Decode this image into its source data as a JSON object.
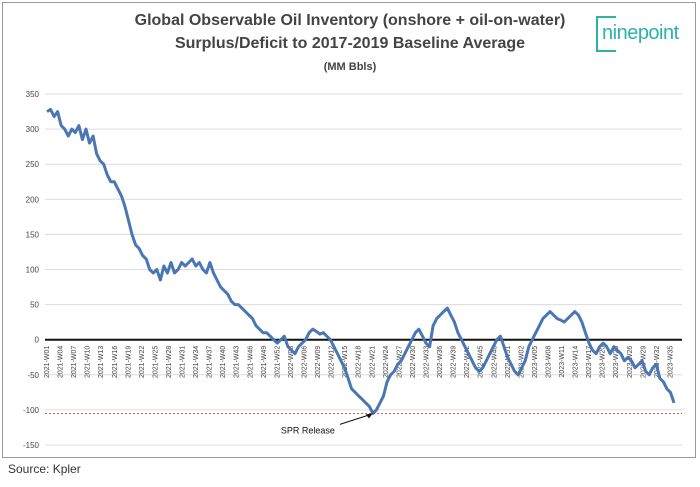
{
  "header": {
    "title_line1": "Global Observable Oil Inventory (onshore + oil-on-water)",
    "title_line2": "Surplus/Deficit to 2017-2019 Baseline Average",
    "units": "(MM Bbls)"
  },
  "logo": {
    "text": "ninepoint"
  },
  "footer": {
    "source": "Source: Kpler"
  },
  "chart_data": {
    "type": "line",
    "title": "Global Observable Oil Inventory (onshore + oil-on-water) Surplus/Deficit to 2017-2019 Baseline Average",
    "ylabel": "(MM Bbls)",
    "ylim": [
      -150,
      350
    ],
    "yticks": [
      350,
      300,
      250,
      200,
      150,
      100,
      50,
      0,
      -50,
      -100,
      -150
    ],
    "grid": true,
    "line_color": "#4a77b4",
    "annotation": {
      "text": "SPR Release",
      "y": -105
    },
    "x_tick_labels": [
      "2021-W01",
      "2021-W04",
      "2021-W07",
      "2021-W10",
      "2021-W13",
      "2021-W16",
      "2021-W19",
      "2021-W22",
      "2021-W25",
      "2021-W28",
      "2021-W31",
      "2021-W34",
      "2021-W37",
      "2021-W40",
      "2021-W43",
      "2021-W46",
      "2021-W49",
      "2021-W52",
      "2022-W03",
      "2022-W06",
      "2022-W09",
      "2022-W12",
      "2022-W15",
      "2022-W18",
      "2022-W21",
      "2022-W24",
      "2022-W27",
      "2022-W30",
      "2022-W33",
      "2022-W36",
      "2022-W39",
      "2022-W42",
      "2022-W45",
      "2022-W48",
      "2022-W51",
      "2023-W02",
      "2023-W05",
      "2023-W08",
      "2023-W11",
      "2023-W14",
      "2023-W17",
      "2023-W20",
      "2023-W23",
      "2023-W26",
      "2023-W29",
      "2023-W32",
      "2023-W35"
    ],
    "series": [
      {
        "values": [
          325,
          328,
          318,
          325,
          305,
          300,
          290,
          300,
          295,
          305,
          285,
          300,
          280,
          290,
          265,
          255,
          250,
          235,
          225,
          225,
          215,
          205,
          190,
          170,
          150,
          135,
          130,
          120,
          115,
          100,
          95,
          100,
          85,
          105,
          95,
          110,
          95,
          100,
          110,
          105,
          110,
          115,
          105,
          110,
          100,
          95,
          110,
          95,
          85,
          75,
          70,
          65,
          55,
          50,
          50,
          45,
          40,
          35,
          30,
          20,
          15,
          10,
          10,
          5,
          0,
          -5,
          0,
          5,
          -10,
          -15,
          -20,
          -10,
          -5,
          0,
          10,
          15,
          12,
          8,
          10,
          5,
          0,
          -10,
          -20,
          -30,
          -40,
          -55,
          -70,
          -75,
          -80,
          -85,
          -90,
          -95,
          -105,
          -100,
          -90,
          -80,
          -60,
          -50,
          -45,
          -35,
          -30,
          -20,
          -10,
          0,
          10,
          15,
          5,
          -5,
          -10,
          20,
          30,
          35,
          40,
          45,
          35,
          25,
          10,
          0,
          -10,
          -20,
          -30,
          -40,
          -45,
          -40,
          -30,
          -20,
          -10,
          0,
          5,
          -10,
          -25,
          -35,
          -45,
          -50,
          -40,
          -30,
          -10,
          0,
          10,
          20,
          30,
          35,
          40,
          35,
          30,
          28,
          25,
          30,
          35,
          40,
          35,
          25,
          10,
          -5,
          -15,
          -20,
          -10,
          -5,
          -10,
          -20,
          -10,
          -15,
          -20,
          -30,
          -25,
          -30,
          -40,
          -35,
          -30,
          -45,
          -50,
          -40,
          -35,
          -55,
          -60,
          -70,
          -75,
          -90
        ]
      }
    ]
  }
}
